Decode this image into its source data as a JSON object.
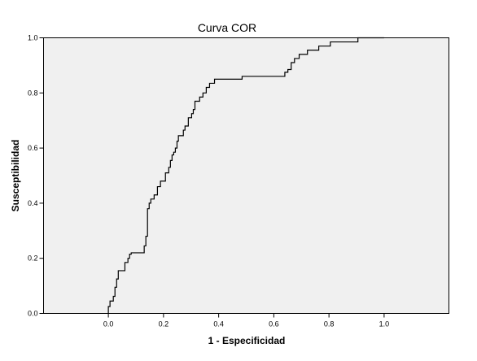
{
  "chart_data": {
    "type": "line",
    "title": "Curva COR",
    "xlabel": "1 - Especificidad",
    "ylabel": "Susceptibilidad",
    "xlim": [
      -0.235,
      1.235
    ],
    "ylim": [
      0.0,
      1.0
    ],
    "xticks": [
      "0.0",
      "0.2",
      "0.4",
      "0.6",
      "0.8",
      "1.0"
    ],
    "yticks": [
      "0.0",
      "0.2",
      "0.4",
      "0.6",
      "0.8",
      "1.0"
    ],
    "grid": false,
    "legend": "none",
    "colors": {
      "plot_background": "#f0f0f0",
      "line": "#000000",
      "axis": "#000000"
    },
    "series": [
      {
        "x": [
          0.0,
          0.0,
          0.006,
          0.006,
          0.018,
          0.018,
          0.024,
          0.024,
          0.03,
          0.03,
          0.036,
          0.036,
          0.06,
          0.06,
          0.071,
          0.071,
          0.077,
          0.077,
          0.083,
          0.083,
          0.13,
          0.13,
          0.136,
          0.136,
          0.142,
          0.142,
          0.148,
          0.148,
          0.154,
          0.154,
          0.166,
          0.166,
          0.178,
          0.178,
          0.189,
          0.189,
          0.207,
          0.207,
          0.219,
          0.219,
          0.225,
          0.225,
          0.231,
          0.231,
          0.237,
          0.237,
          0.243,
          0.243,
          0.249,
          0.249,
          0.254,
          0.254,
          0.272,
          0.272,
          0.278,
          0.278,
          0.29,
          0.29,
          0.302,
          0.302,
          0.308,
          0.308,
          0.314,
          0.314,
          0.331,
          0.331,
          0.343,
          0.343,
          0.355,
          0.355,
          0.367,
          0.367,
          0.385,
          0.385,
          0.485,
          0.485,
          0.64,
          0.64,
          0.651,
          0.651,
          0.663,
          0.663,
          0.675,
          0.675,
          0.692,
          0.692,
          0.722,
          0.722,
          0.763,
          0.763,
          0.805,
          0.805,
          0.905,
          0.905,
          1.0
        ],
        "y": [
          0.0,
          0.025,
          0.025,
          0.045,
          0.045,
          0.062,
          0.062,
          0.095,
          0.095,
          0.125,
          0.125,
          0.155,
          0.155,
          0.185,
          0.185,
          0.2,
          0.2,
          0.215,
          0.215,
          0.22,
          0.22,
          0.245,
          0.245,
          0.28,
          0.28,
          0.38,
          0.38,
          0.4,
          0.4,
          0.415,
          0.415,
          0.43,
          0.43,
          0.46,
          0.46,
          0.48,
          0.48,
          0.51,
          0.51,
          0.53,
          0.53,
          0.555,
          0.555,
          0.575,
          0.575,
          0.585,
          0.585,
          0.6,
          0.6,
          0.625,
          0.625,
          0.645,
          0.645,
          0.665,
          0.665,
          0.68,
          0.68,
          0.71,
          0.71,
          0.725,
          0.725,
          0.74,
          0.74,
          0.77,
          0.77,
          0.785,
          0.785,
          0.8,
          0.8,
          0.82,
          0.82,
          0.835,
          0.835,
          0.85,
          0.85,
          0.86,
          0.86,
          0.875,
          0.875,
          0.885,
          0.885,
          0.91,
          0.91,
          0.925,
          0.925,
          0.94,
          0.94,
          0.955,
          0.955,
          0.97,
          0.97,
          0.985,
          0.985,
          1.0,
          1.0
        ]
      }
    ]
  }
}
